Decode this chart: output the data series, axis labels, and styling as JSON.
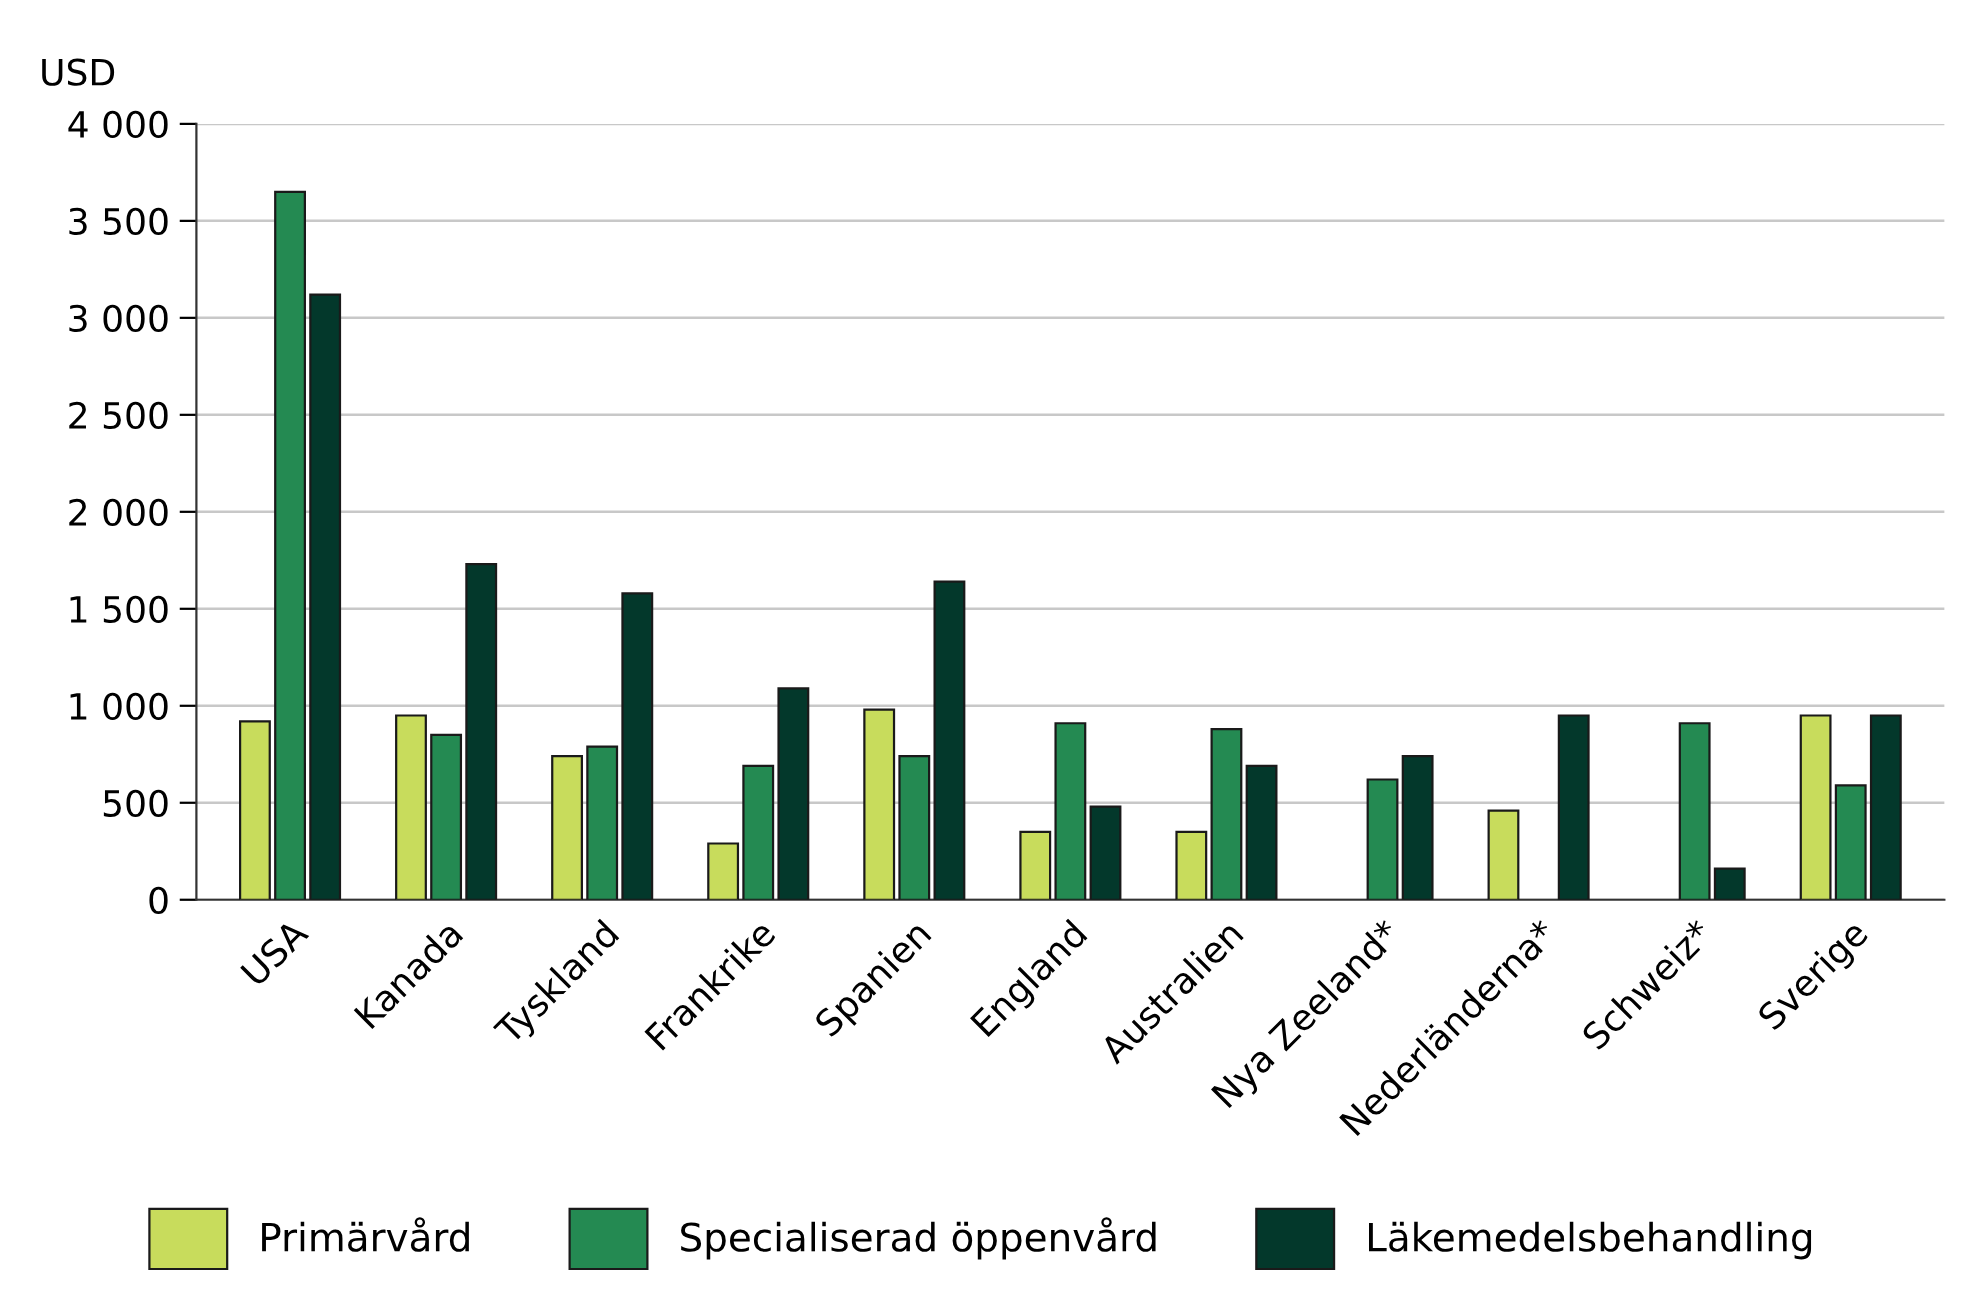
{
  "chart_data": {
    "type": "bar",
    "ylabel": "USD",
    "categories": [
      "USA",
      "Kanada",
      "Tyskland",
      "Frankrike",
      "Spanien",
      "England",
      "Australien",
      "Nya Zeeland*",
      "Nederländerna*",
      "Schweiz*",
      "Sverige"
    ],
    "series": [
      {
        "name": "Primärvård",
        "color": "#c8dc5c",
        "values": [
          920,
          950,
          740,
          290,
          980,
          350,
          350,
          null,
          460,
          null,
          950
        ]
      },
      {
        "name": "Specialiserad öppenvård",
        "color": "#248a52",
        "values": [
          3650,
          850,
          790,
          690,
          740,
          910,
          880,
          620,
          null,
          910,
          590
        ]
      },
      {
        "name": "Läkemedelsbehandling",
        "color": "#03382b",
        "values": [
          3120,
          1730,
          1580,
          1090,
          1640,
          480,
          690,
          740,
          950,
          160,
          950
        ]
      }
    ],
    "ylim": [
      0,
      4000
    ],
    "yticks": [
      {
        "value": 0,
        "label": "0"
      },
      {
        "value": 500,
        "label": "500"
      },
      {
        "value": 1000,
        "label": "1 000"
      },
      {
        "value": 1500,
        "label": "1 500"
      },
      {
        "value": 2000,
        "label": "2 000"
      },
      {
        "value": 2500,
        "label": "2 500"
      },
      {
        "value": 3000,
        "label": "3 000"
      },
      {
        "value": 3500,
        "label": "3 500"
      },
      {
        "value": 4000,
        "label": "4 000"
      }
    ],
    "grid": "y",
    "legend": "bottom"
  }
}
